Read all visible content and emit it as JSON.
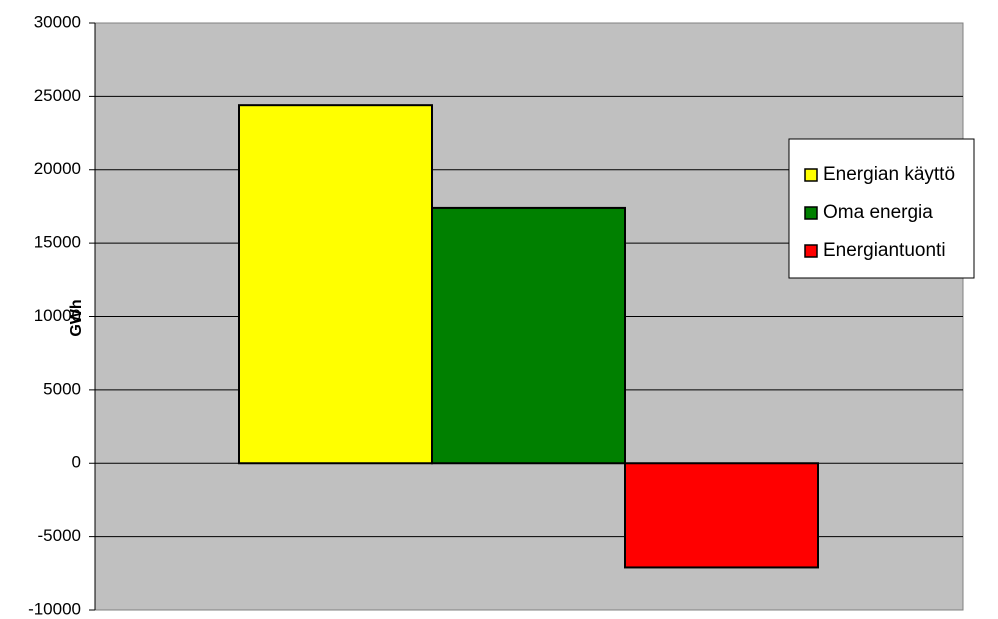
{
  "chart_data": {
    "type": "bar",
    "ylabel": "GWh",
    "ylim": [
      -10000,
      30000
    ],
    "yticks": [
      "30000",
      "25000",
      "20000",
      "15000",
      "10000",
      "5000",
      "0",
      "-5000",
      "-10000"
    ],
    "grid": true,
    "legend_position": "right",
    "series": [
      {
        "name": "Energian käyttö",
        "value": 24400,
        "color": "#FFFF00"
      },
      {
        "name": "Oma energia",
        "value": 17400,
        "color": "#008000"
      },
      {
        "name": "Energiantuonti",
        "value": -7100,
        "color": "#FF0000"
      }
    ],
    "plot_background": "#C0C0C0"
  }
}
